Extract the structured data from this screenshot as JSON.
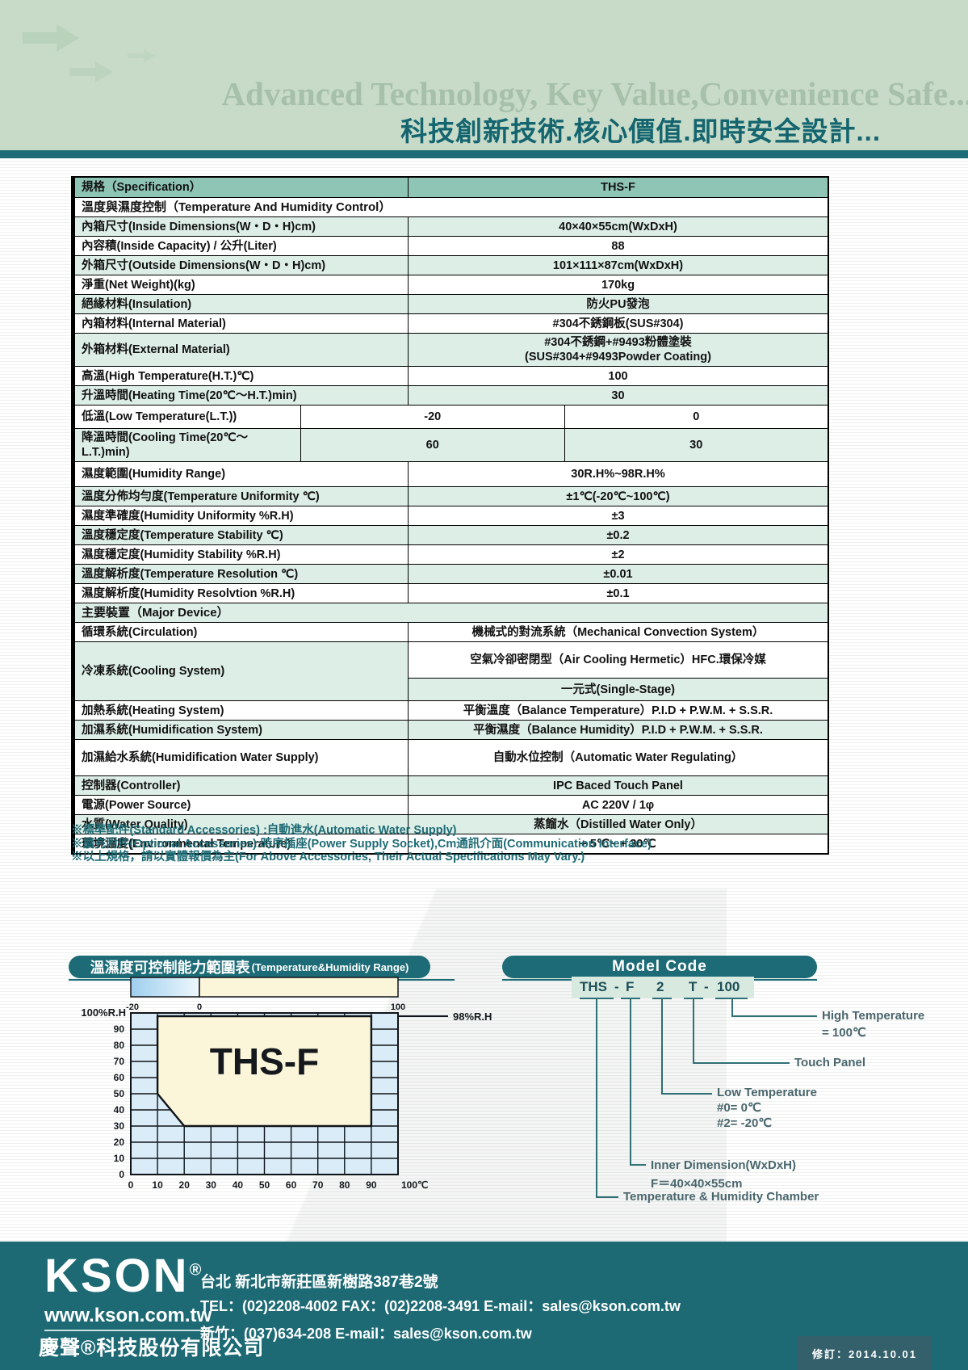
{
  "header": {
    "title_en": "Advanced Technology, Key Value,Convenience Safe...",
    "title_zh": "科技創新技術.核心價值.即時安全設計..."
  },
  "spec_table": {
    "header": {
      "label": "規格（Specification）",
      "value": "THS-F"
    },
    "rows": [
      {
        "type": "section",
        "label": "溫度與濕度控制（Temperature And Humidity Control）",
        "bg": "white"
      },
      {
        "type": "row",
        "label": "內箱尺寸(Inside Dimensions(W・D・H)cm)",
        "value": "40×40×55cm(WxDxH)",
        "bg": "mint"
      },
      {
        "type": "row",
        "label": "內容積(Inside Capacity) / 公升(Liter)",
        "value": "88",
        "bg": "white"
      },
      {
        "type": "row",
        "label": "外箱尺寸(Outside Dimensions(W・D・H)cm)",
        "value": "101×111×87cm(WxDxH)",
        "bg": "mint"
      },
      {
        "type": "row",
        "label": "淨重(Net Weight)(kg)",
        "value": "170kg",
        "bg": "white"
      },
      {
        "type": "row",
        "label": "絕緣材料(Insulation)",
        "value": "防火PU發泡",
        "bg": "mint"
      },
      {
        "type": "row",
        "label": "內箱材料(Internal Material)",
        "value": "#304不銹鋼板(SUS#304)",
        "bg": "white"
      },
      {
        "type": "row",
        "label": "外箱材料(External Material)",
        "value_lines": [
          "#304不銹鋼+#9493粉體塗裝",
          "(SUS#304+#9493Powder Coating)"
        ],
        "bg": "mint"
      },
      {
        "type": "row",
        "label": "高溫(High Temperature(H.T.)℃)",
        "value": "100",
        "bg": "white"
      },
      {
        "type": "row",
        "label": "升溫時間(Heating Time(20℃～H.T.)min)",
        "value": "30",
        "bg": "mint"
      },
      {
        "type": "split",
        "label": "低溫(Low Temperature(L.T.))",
        "values": [
          "-20",
          "0"
        ],
        "bg": "white"
      },
      {
        "type": "split",
        "label": "降溫時間(Cooling Time(20℃～L.T.)min)",
        "values": [
          "60",
          "30"
        ],
        "bg": "mint"
      },
      {
        "type": "row",
        "label": "濕度範圍(Humidity Range)",
        "value": "30R.H%~98R.H%",
        "bg": "white"
      },
      {
        "type": "row",
        "label": "溫度分佈均勻度(Temperature Uniformity ℃)",
        "value": "±1℃(-20℃~100℃)",
        "bg": "mint"
      },
      {
        "type": "row",
        "label": "濕度準確度(Humidity Uniformity %R.H)",
        "value": "±3",
        "bg": "white"
      },
      {
        "type": "row",
        "label": "溫度穩定度(Temperature Stability ℃)",
        "value": "±0.2",
        "bg": "mint"
      },
      {
        "type": "row",
        "label": "濕度穩定度(Humidity Stability %R.H)",
        "value": "±2",
        "bg": "white"
      },
      {
        "type": "row",
        "label": "溫度解析度(Temperature Resolution ℃)",
        "value": "±0.01",
        "bg": "mint"
      },
      {
        "type": "row",
        "label": "濕度解析度(Humidity Resolvtion %R.H)",
        "value": "±0.1",
        "bg": "white"
      },
      {
        "type": "section",
        "label": "主要裝置（Major Device）",
        "bg": "mint"
      },
      {
        "type": "row",
        "label": "循環系統(Circulation)",
        "value": "機械式的對流系統（Mechanical Convection System）",
        "bg": "white"
      },
      {
        "type": "group2",
        "label": "冷凍系統(Cooling System)",
        "values": [
          "空氣冷卻密閉型（Air Cooling Hermetic）HFC.環保冷媒",
          "一元式(Single-Stage)"
        ],
        "bg": "mint",
        "value_bgs": [
          "white",
          "mint"
        ]
      },
      {
        "type": "row",
        "label": "加熱系統(Heating System)",
        "value": "平衡溫度（Balance Temperature）P.I.D + P.W.M. + S.S.R.",
        "bg": "white"
      },
      {
        "type": "row",
        "label": "加濕系統(Humidification System)",
        "value": "平衡濕度（Balance Humidity）P.I.D + P.W.M. + S.S.R.",
        "bg": "mint"
      },
      {
        "type": "row",
        "label": "加濕給水系統(Humidification Water Supply)",
        "value": "自動水位控制（Automatic Water Regulating）",
        "bg": "white"
      },
      {
        "type": "row",
        "label": "控制器(Controller)",
        "value": "IPC Baced Touch Panel",
        "bg": "mint"
      },
      {
        "type": "row",
        "label": "電源(Power Source)",
        "value": "AC 220V / 1φ",
        "bg": "white"
      },
      {
        "type": "row",
        "label": "水質(Water Quality)",
        "value": "蒸餾水（Distilled Water Only）",
        "bg": "mint"
      },
      {
        "type": "row",
        "label": "環境溫度(Environmental Temperature)",
        "value": "+ 5℃~ + 30℃",
        "bg": "white"
      }
    ]
  },
  "notes": [
    "※標準配件(Standard  Accessories) :自動進水(Automatic Water Supply)",
    "※擴充附件(Optional Accessories):時序插座(Power Supply Socket),Cm通訊介面(Communication Interface)",
    "※以上規格，請以實體報價為主(For Above Accessories, Their Actual Specifications May Vary.)"
  ],
  "chart_data": {
    "type": "area",
    "title_zh": "溫濕度可控制能力範圍表",
    "title_en": "(Temperature&Humidity Range)",
    "series_label": "THS-F",
    "xlabel": "℃",
    "ylabel": "%R.H",
    "xlim": [
      0,
      100
    ],
    "ylim": [
      0,
      100
    ],
    "x_ticks": [
      0,
      10,
      20,
      30,
      40,
      50,
      60,
      70,
      80,
      90
    ],
    "x_end_tick_label": "100℃",
    "y_ticks": [
      0,
      10,
      20,
      30,
      40,
      50,
      60,
      70,
      80,
      90
    ],
    "y_top_tick_label": "100%R.H",
    "right_annotation": "98%R.H",
    "grid": true,
    "envelope_points": [
      [
        10,
        98
      ],
      [
        90,
        98
      ],
      [
        90,
        30
      ],
      [
        20,
        30
      ],
      [
        10,
        50
      ]
    ],
    "temp_bar": {
      "labels": [
        "-20",
        "0",
        "100"
      ],
      "cold_range": [
        -20,
        0
      ],
      "warm_range": [
        0,
        100
      ]
    },
    "colors": {
      "plot_bg": "#d9ecf8",
      "envelope": "#fbf6da",
      "cold_start": "#9ecfee",
      "cold_end": "#eef7fd",
      "cream": "#fbf6d9",
      "line": "#101418"
    }
  },
  "model_code": {
    "title": "Model Code",
    "tokens": [
      "THS",
      "-",
      "F",
      "2",
      "T",
      "-",
      "100"
    ],
    "branches": [
      {
        "token": "100",
        "lines": [
          "High Temperature",
          "= 100℃"
        ]
      },
      {
        "token": "T",
        "lines": [
          "Touch Panel"
        ]
      },
      {
        "token": "2",
        "lines": [
          "Low Temperature",
          "#0=   0℃",
          "#2= -20℃"
        ]
      },
      {
        "token": "F",
        "lines": [
          "Inner Dimension(WxDxH)",
          "F＝40×40×55cm"
        ]
      },
      {
        "token": "THS",
        "lines": [
          "Temperature & Humidity Chamber"
        ]
      }
    ]
  },
  "footer": {
    "logo": "KSON",
    "registered": "®",
    "website": "www.kson.com.tw",
    "company": "慶聲®科技股份有限公司",
    "address": "台北  新北市新莊區新樹路387巷2號",
    "contact1": "TEL：(02)2208-4002  FAX：(02)2208-3491  E-mail：sales@kson.com.tw",
    "contact2": "新竹：(037)634-208   E-mail：sales@kson.com.tw",
    "revision": "修訂：2014.10.01"
  }
}
